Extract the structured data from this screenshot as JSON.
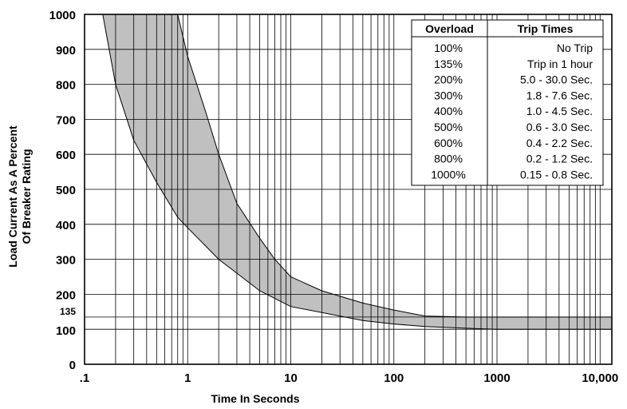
{
  "chart_data": {
    "type": "area",
    "title": "",
    "xlabel": "Time In Seconds",
    "ylabel_lines": [
      "Load Current As A Percent",
      "Of Breaker Rating"
    ],
    "x_scale": "log",
    "xlim": [
      0.1,
      13000
    ],
    "ylim": [
      0,
      1000
    ],
    "grid": true,
    "x_ticks": [
      {
        "value": 0.1,
        "label": ".1"
      },
      {
        "value": 1,
        "label": "1"
      },
      {
        "value": 10,
        "label": "10"
      },
      {
        "value": 100,
        "label": "100"
      },
      {
        "value": 1000,
        "label": "1000"
      },
      {
        "value": 10000,
        "label": "10,000"
      }
    ],
    "y_ticks": [
      {
        "value": 0,
        "label": "0"
      },
      {
        "value": 100,
        "label": "100"
      },
      {
        "value": 135,
        "label": "135"
      },
      {
        "value": 200,
        "label": "200"
      },
      {
        "value": 300,
        "label": "300"
      },
      {
        "value": 400,
        "label": "400"
      },
      {
        "value": 500,
        "label": "500"
      },
      {
        "value": 600,
        "label": "600"
      },
      {
        "value": 700,
        "label": "700"
      },
      {
        "value": 800,
        "label": "800"
      },
      {
        "value": 900,
        "label": "900"
      },
      {
        "value": 1000,
        "label": "1000"
      }
    ],
    "band_fill": "#c0c0c0",
    "series": [
      {
        "points": [
          [
            0.15,
            1000
          ],
          [
            0.2,
            800
          ],
          [
            0.3,
            640
          ],
          [
            0.5,
            520
          ],
          [
            0.8,
            420
          ],
          [
            1,
            390
          ],
          [
            2,
            300
          ],
          [
            5,
            210
          ],
          [
            10,
            165
          ],
          [
            50,
            125
          ],
          [
            100,
            115
          ],
          [
            200,
            108
          ],
          [
            500,
            103
          ],
          [
            1000,
            100
          ],
          [
            13000,
            100
          ]
        ]
      },
      {
        "points": [
          [
            0.8,
            1000
          ],
          [
            1,
            880
          ],
          [
            1.5,
            720
          ],
          [
            2,
            600
          ],
          [
            3,
            460
          ],
          [
            5,
            360
          ],
          [
            7,
            300
          ],
          [
            10,
            250
          ],
          [
            20,
            210
          ],
          [
            50,
            175
          ],
          [
            100,
            155
          ],
          [
            200,
            138
          ],
          [
            500,
            135
          ],
          [
            1000,
            135
          ],
          [
            13000,
            135
          ]
        ]
      }
    ]
  },
  "trip_table": {
    "headers": [
      "Overload",
      "Trip Times"
    ],
    "rows": [
      [
        "100%",
        "No Trip"
      ],
      [
        "135%",
        "Trip in 1 hour"
      ],
      [
        "200%",
        "5.0 - 30.0 Sec."
      ],
      [
        "300%",
        "1.8 - 7.6 Sec."
      ],
      [
        "400%",
        "1.0 - 4.5 Sec."
      ],
      [
        "500%",
        "0.6 - 3.0 Sec."
      ],
      [
        "600%",
        "0.4 - 2.2 Sec."
      ],
      [
        "800%",
        "0.2 - 1.2 Sec."
      ],
      [
        "1000%",
        "0.15 - 0.8 Sec."
      ]
    ]
  }
}
